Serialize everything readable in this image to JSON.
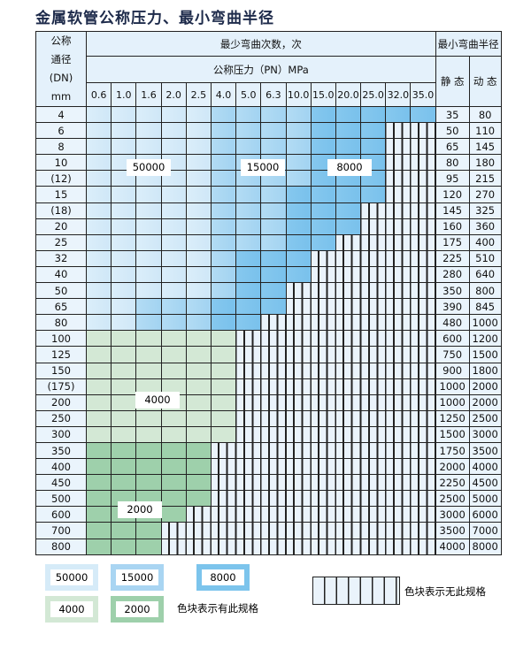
{
  "title": "金属软管公称压力、最小弯曲半径",
  "header": {
    "dn_label": [
      "公称",
      "通径",
      "(DN)",
      "mm"
    ],
    "cycles_label": "最少弯曲次数，次",
    "pressure_label": "公称压力（PN）MPa",
    "radius_label": "最小弯曲半径",
    "static_label": "静 态",
    "dynamic_label": "动 态",
    "pressures": [
      "0.6",
      "1.0",
      "1.6",
      "2.0",
      "2.5",
      "4.0",
      "5.0",
      "6.3",
      "10.0",
      "15.0",
      "20.0",
      "25.0",
      "32.0",
      "35.0"
    ]
  },
  "colors": {
    "A": "#d6ebf8",
    "B": "#a9d5f2",
    "C": "#7cc4ec",
    "D": "#d3e8d5",
    "E": "#9ed0ab",
    "X": "#eaf3fb"
  },
  "regions": {
    "A": "50000",
    "B": "15000",
    "C": "8000",
    "D": "4000",
    "E": "2000"
  },
  "rows": [
    {
      "dn": "4",
      "static": "35",
      "dynamic": "80",
      "cells": "AAAAABBBBCCCCC"
    },
    {
      "dn": "6",
      "static": "50",
      "dynamic": "110",
      "cells": "AAAAABBBBCCCXX"
    },
    {
      "dn": "8",
      "static": "65",
      "dynamic": "145",
      "cells": "AAAAABBBBCCCXX"
    },
    {
      "dn": "10",
      "static": "80",
      "dynamic": "180",
      "cells": "AAAAABBBBCCCXX"
    },
    {
      "dn": "(12)",
      "static": "95",
      "dynamic": "215",
      "cells": "AAAAABBBBCCCXX"
    },
    {
      "dn": "15",
      "static": "120",
      "dynamic": "270",
      "cells": "AAAAABBBCCCCXX"
    },
    {
      "dn": "(18)",
      "static": "145",
      "dynamic": "325",
      "cells": "AAAAABBBCCCXXX"
    },
    {
      "dn": "20",
      "static": "160",
      "dynamic": "360",
      "cells": "AAAAABBBCCCXXX"
    },
    {
      "dn": "25",
      "static": "175",
      "dynamic": "400",
      "cells": "AAAAABBBCCXXXX"
    },
    {
      "dn": "32",
      "static": "225",
      "dynamic": "510",
      "cells": "AAAAABCCCXXXXX"
    },
    {
      "dn": "40",
      "static": "280",
      "dynamic": "640",
      "cells": "AAAAABCCCXXXXX"
    },
    {
      "dn": "50",
      "static": "350",
      "dynamic": "800",
      "cells": "AAAAABCCXXXXXX"
    },
    {
      "dn": "65",
      "static": "390",
      "dynamic": "845",
      "cells": "AABBBCCCXXXXXX"
    },
    {
      "dn": "80",
      "static": "480",
      "dynamic": "1000",
      "cells": "AABBBCCXXXXXXX"
    },
    {
      "dn": "100",
      "static": "600",
      "dynamic": "1200",
      "cells": "DDDDDDXXXXXXXX"
    },
    {
      "dn": "125",
      "static": "750",
      "dynamic": "1500",
      "cells": "DDDDDDXXXXXXXX"
    },
    {
      "dn": "150",
      "static": "900",
      "dynamic": "1800",
      "cells": "DDDDDDXXXXXXXX"
    },
    {
      "dn": "(175)",
      "static": "1000",
      "dynamic": "2000",
      "cells": "DDDDDDXXXXXXXX"
    },
    {
      "dn": "200",
      "static": "1000",
      "dynamic": "2000",
      "cells": "DDDDDDXXXXXXXX"
    },
    {
      "dn": "250",
      "static": "1250",
      "dynamic": "2500",
      "cells": "DDDDDDXXXXXXXX"
    },
    {
      "dn": "300",
      "static": "1500",
      "dynamic": "3000",
      "cells": "DDDDDDXXXXXXXX"
    },
    {
      "dn": "350",
      "static": "1750",
      "dynamic": "3500",
      "cells": "EEEEEXXXXXXXXX"
    },
    {
      "dn": "400",
      "static": "2000",
      "dynamic": "4000",
      "cells": "EEEEEXXXXXXXXX"
    },
    {
      "dn": "450",
      "static": "2250",
      "dynamic": "4500",
      "cells": "EEEEEXXXXXXXXX"
    },
    {
      "dn": "500",
      "static": "2500",
      "dynamic": "5000",
      "cells": "EEEEEXXXXXXXXX"
    },
    {
      "dn": "600",
      "static": "3000",
      "dynamic": "6000",
      "cells": "EEEEXXXXXXXXXX"
    },
    {
      "dn": "700",
      "static": "3500",
      "dynamic": "7000",
      "cells": "EEEXXXXXXXXXXX"
    },
    {
      "dn": "800",
      "static": "4000",
      "dynamic": "8000",
      "cells": "EEEXXXXXXXXXXX"
    }
  ],
  "legend": {
    "items": [
      "50000",
      "15000",
      "8000",
      "4000",
      "2000"
    ],
    "has_spec_text": "色块表示有此规格",
    "no_spec_text": "色块表示无此规格"
  }
}
